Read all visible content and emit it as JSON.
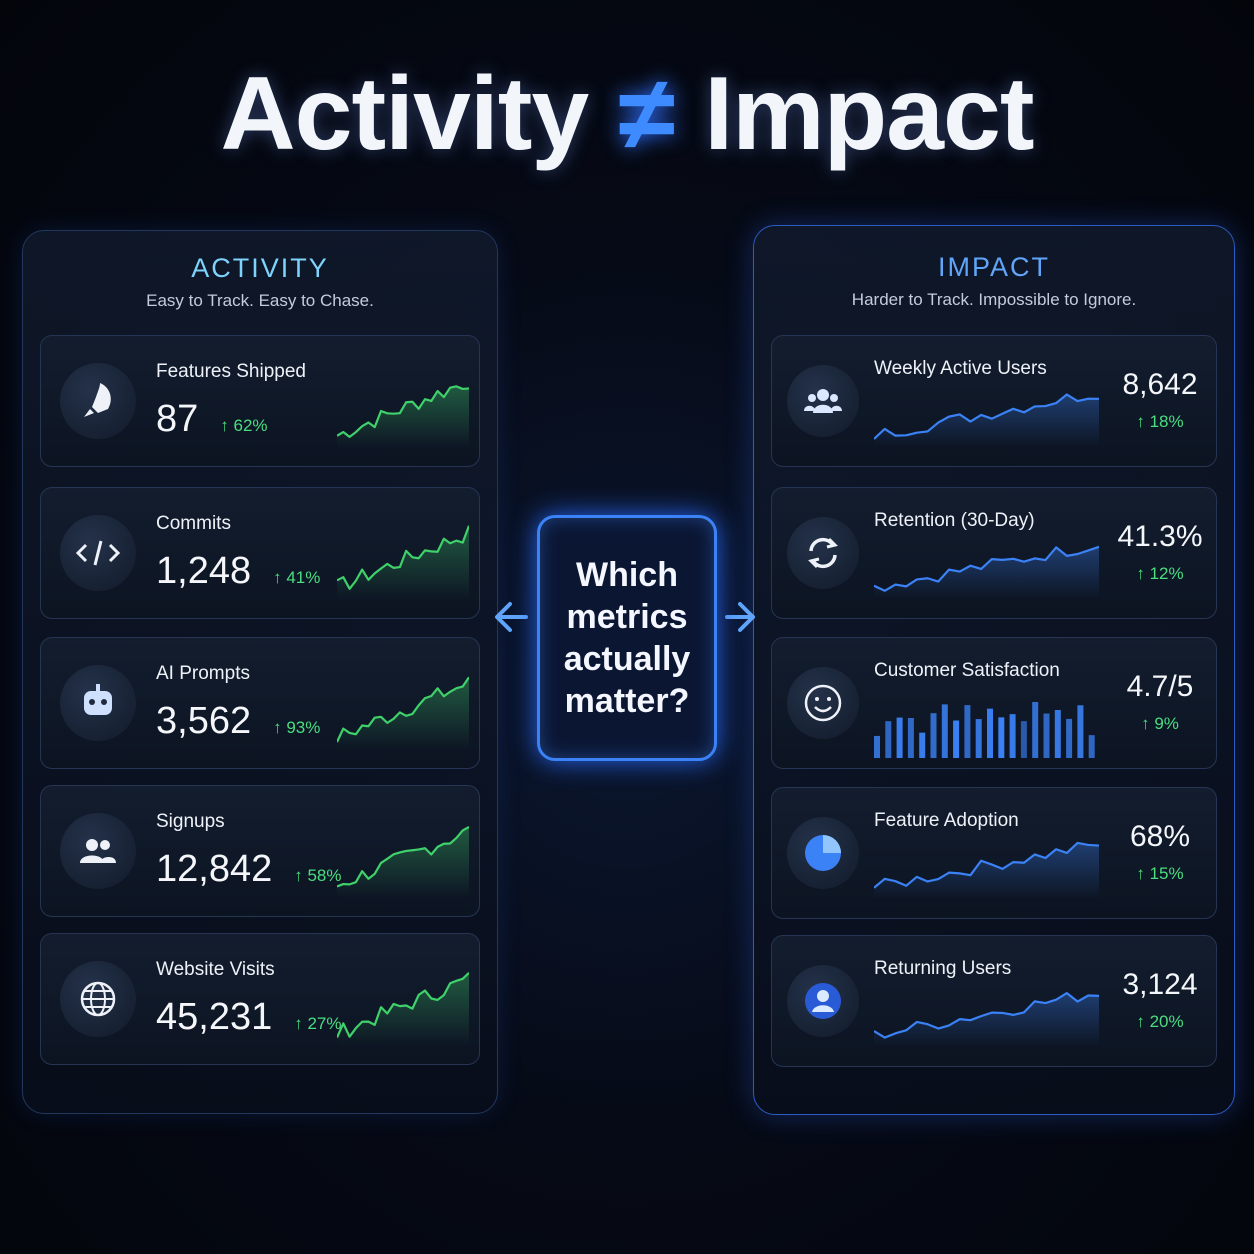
{
  "title": {
    "left": "Activity",
    "symbol": "≠",
    "right": "Impact"
  },
  "left_panel": {
    "heading": "ACTIVITY",
    "subheading": "Easy to Track. Easy to Chase.",
    "cards": [
      {
        "label": "Features Shipped",
        "value": "87",
        "change": "↑ 62%"
      },
      {
        "label": "Commits",
        "value": "1,248",
        "change": "↑ 41%"
      },
      {
        "label": "AI Prompts",
        "value": "3,562",
        "change": "↑ 93%"
      },
      {
        "label": "Signups",
        "value": "12,842",
        "change": "↑ 58%"
      },
      {
        "label": "Website Visits",
        "value": "45,231",
        "change": "↑ 27%"
      }
    ]
  },
  "center": {
    "question": "Which metrics actually matter?"
  },
  "right_panel": {
    "heading": "IMPACT",
    "subheading": "Harder to Track. Impossible to Ignore.",
    "cards": [
      {
        "label": "Weekly Active Users",
        "value": "8,642",
        "change": "↑ 18%"
      },
      {
        "label": "Retention (30-Day)",
        "value": "41.3%",
        "change": "↑ 12%"
      },
      {
        "label": "Customer Satisfaction",
        "value": "4.7/5",
        "change": "↑ 9%"
      },
      {
        "label": "Feature Adoption",
        "value": "68%",
        "change": "↑ 15%"
      },
      {
        "label": "Returning Users",
        "value": "3,124",
        "change": "↑ 20%"
      }
    ]
  }
}
